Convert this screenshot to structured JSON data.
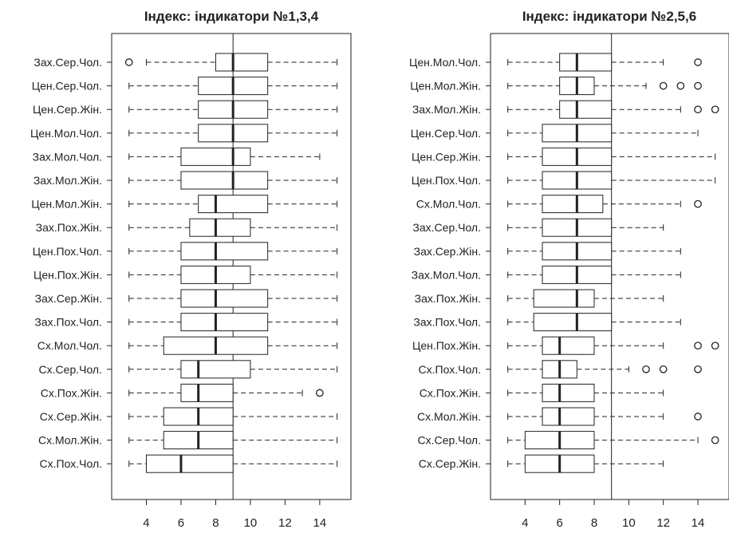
{
  "chart_data": [
    {
      "type": "boxplot",
      "title": "Індекс: індикатори №1,3,4",
      "xlabel": "",
      "ylabel": "",
      "xlim": [
        2.0,
        15.8
      ],
      "x_ticks": [
        "4",
        "6",
        "8",
        "10",
        "12",
        "14"
      ],
      "reference_line": 9,
      "grid": false,
      "categories": [
        "Зах.Сер.Чол.",
        "Цен.Сер.Чол.",
        "Цен.Сер.Жін.",
        "Цен.Мол.Чол.",
        "Зах.Мол.Чол.",
        "Зах.Мол.Жін.",
        "Цен.Мол.Жін.",
        "Зах.Пох.Жін.",
        "Цен.Пох.Чол.",
        "Цен.Пох.Жін.",
        "Зах.Сер.Жін.",
        "Зах.Пох.Чол.",
        "Сх.Мол.Чол.",
        "Сх.Сер.Чол.",
        "Сх.Пох.Жін.",
        "Сх.Сер.Жін.",
        "Сх.Мол.Жін.",
        "Сх.Пох.Чол."
      ],
      "boxes": [
        {
          "low": 4,
          "q1": 8,
          "median": 9,
          "q3": 11,
          "high": 15,
          "outliers": [
            3
          ]
        },
        {
          "low": 3,
          "q1": 7,
          "median": 9,
          "q3": 11,
          "high": 15,
          "outliers": []
        },
        {
          "low": 3,
          "q1": 7,
          "median": 9,
          "q3": 11,
          "high": 15,
          "outliers": []
        },
        {
          "low": 3,
          "q1": 7,
          "median": 9,
          "q3": 11,
          "high": 15,
          "outliers": []
        },
        {
          "low": 3,
          "q1": 6,
          "median": 9,
          "q3": 10,
          "high": 14,
          "outliers": []
        },
        {
          "low": 3,
          "q1": 6,
          "median": 9,
          "q3": 11,
          "high": 15,
          "outliers": []
        },
        {
          "low": 3,
          "q1": 7,
          "median": 8,
          "q3": 11,
          "high": 15,
          "outliers": []
        },
        {
          "low": 3,
          "q1": 6.5,
          "median": 8,
          "q3": 10,
          "high": 15,
          "outliers": []
        },
        {
          "low": 3,
          "q1": 6,
          "median": 8,
          "q3": 11,
          "high": 15,
          "outliers": []
        },
        {
          "low": 3,
          "q1": 6,
          "median": 8,
          "q3": 10,
          "high": 15,
          "outliers": []
        },
        {
          "low": 3,
          "q1": 6,
          "median": 8,
          "q3": 11,
          "high": 15,
          "outliers": []
        },
        {
          "low": 3,
          "q1": 6,
          "median": 8,
          "q3": 11,
          "high": 15,
          "outliers": []
        },
        {
          "low": 3,
          "q1": 5,
          "median": 8,
          "q3": 11,
          "high": 15,
          "outliers": []
        },
        {
          "low": 3,
          "q1": 6,
          "median": 7,
          "q3": 10,
          "high": 15,
          "outliers": []
        },
        {
          "low": 3,
          "q1": 6,
          "median": 7,
          "q3": 9,
          "high": 13,
          "outliers": [
            14
          ]
        },
        {
          "low": 3,
          "q1": 5,
          "median": 7,
          "q3": 9,
          "high": 15,
          "outliers": []
        },
        {
          "low": 3,
          "q1": 5,
          "median": 7,
          "q3": 9,
          "high": 15,
          "outliers": []
        },
        {
          "low": 3,
          "q1": 4,
          "median": 6,
          "q3": 9,
          "high": 15,
          "outliers": []
        }
      ]
    },
    {
      "type": "boxplot",
      "title": "Індекс: індикатори №2,5,6",
      "xlabel": "",
      "ylabel": "",
      "xlim": [
        2.0,
        15.8
      ],
      "x_ticks": [
        "4",
        "6",
        "8",
        "10",
        "12",
        "14"
      ],
      "reference_line": 9,
      "grid": false,
      "categories": [
        "Цен.Мол.Чол.",
        "Цен.Мол.Жін.",
        "Зах.Мол.Жін.",
        "Цен.Сер.Чол.",
        "Цен.Сер.Жін.",
        "Цен.Пох.Чол.",
        "Сх.Мол.Чол.",
        "Зах.Сер.Чол.",
        "Зах.Сер.Жін.",
        "Зах.Мол.Чол.",
        "Зах.Пох.Жін.",
        "Зах.Пох.Чол.",
        "Цен.Пох.Жін.",
        "Сх.Пох.Чол.",
        "Сх.Пох.Жін.",
        "Сх.Мол.Жін.",
        "Сх.Сер.Чол.",
        "Сх.Сер.Жін."
      ],
      "boxes": [
        {
          "low": 3,
          "q1": 6,
          "median": 7,
          "q3": 9,
          "high": 12,
          "outliers": [
            14
          ]
        },
        {
          "low": 3,
          "q1": 6,
          "median": 7,
          "q3": 8,
          "high": 11,
          "outliers": [
            12,
            13,
            14
          ]
        },
        {
          "low": 3,
          "q1": 6,
          "median": 7,
          "q3": 9,
          "high": 13,
          "outliers": [
            14,
            15
          ]
        },
        {
          "low": 3,
          "q1": 5,
          "median": 7,
          "q3": 9,
          "high": 14,
          "outliers": []
        },
        {
          "low": 3,
          "q1": 5,
          "median": 7,
          "q3": 9,
          "high": 15,
          "outliers": []
        },
        {
          "low": 3,
          "q1": 5,
          "median": 7,
          "q3": 9,
          "high": 15,
          "outliers": []
        },
        {
          "low": 3,
          "q1": 5,
          "median": 7,
          "q3": 8.5,
          "high": 13,
          "outliers": [
            14
          ]
        },
        {
          "low": 3,
          "q1": 5,
          "median": 7,
          "q3": 9,
          "high": 12,
          "outliers": []
        },
        {
          "low": 3,
          "q1": 5,
          "median": 7,
          "q3": 9,
          "high": 13,
          "outliers": []
        },
        {
          "low": 3,
          "q1": 5,
          "median": 7,
          "q3": 9,
          "high": 13,
          "outliers": []
        },
        {
          "low": 3,
          "q1": 4.5,
          "median": 7,
          "q3": 8,
          "high": 12,
          "outliers": []
        },
        {
          "low": 3,
          "q1": 4.5,
          "median": 7,
          "q3": 9,
          "high": 13,
          "outliers": []
        },
        {
          "low": 3,
          "q1": 5,
          "median": 6,
          "q3": 8,
          "high": 12,
          "outliers": [
            14,
            15
          ]
        },
        {
          "low": 3,
          "q1": 5,
          "median": 6,
          "q3": 7,
          "high": 10,
          "outliers": [
            11,
            12,
            14
          ]
        },
        {
          "low": 3,
          "q1": 5,
          "median": 6,
          "q3": 8,
          "high": 12,
          "outliers": []
        },
        {
          "low": 3,
          "q1": 5,
          "median": 6,
          "q3": 8,
          "high": 12,
          "outliers": [
            14
          ]
        },
        {
          "low": 3,
          "q1": 4,
          "median": 6,
          "q3": 8,
          "high": 14,
          "outliers": [
            15
          ]
        },
        {
          "low": 3,
          "q1": 4,
          "median": 6,
          "q3": 8,
          "high": 12,
          "outliers": []
        }
      ]
    }
  ]
}
